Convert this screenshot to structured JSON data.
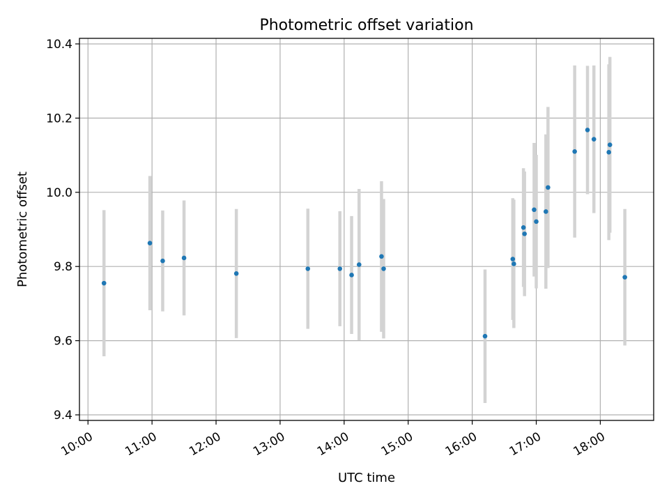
{
  "chart_data": {
    "type": "scatter",
    "title": "Photometric offset variation",
    "xlabel": "UTC time",
    "ylabel": "Photometric offset",
    "x_is_time": true,
    "xlim": [
      "09:52",
      "18:50"
    ],
    "ylim": [
      9.385,
      10.415
    ],
    "xticks": [
      "10:00",
      "11:00",
      "12:00",
      "13:00",
      "14:00",
      "15:00",
      "16:00",
      "17:00",
      "18:00"
    ],
    "yticks": [
      "9.4",
      "9.6",
      "9.8",
      "10.0",
      "10.2",
      "10.4"
    ],
    "grid": true,
    "marker_color": "#1f77b4",
    "errorbar_color": "#d3d3d3",
    "points": [
      {
        "x": "10:15",
        "y": 9.755,
        "err": 0.197
      },
      {
        "x": "10:58",
        "y": 9.863,
        "err": 0.181
      },
      {
        "x": "11:10",
        "y": 9.815,
        "err": 0.136
      },
      {
        "x": "11:30",
        "y": 9.823,
        "err": 0.155
      },
      {
        "x": "12:19",
        "y": 9.781,
        "err": 0.174
      },
      {
        "x": "13:26",
        "y": 9.794,
        "err": 0.162
      },
      {
        "x": "13:56",
        "y": 9.794,
        "err": 0.155
      },
      {
        "x": "14:07",
        "y": 9.777,
        "err": 0.159
      },
      {
        "x": "14:14",
        "y": 9.805,
        "err": 0.204
      },
      {
        "x": "14:35",
        "y": 9.827,
        "err": 0.203
      },
      {
        "x": "14:37",
        "y": 9.794,
        "err": 0.188
      },
      {
        "x": "16:12",
        "y": 9.612,
        "err": 0.18
      },
      {
        "x": "16:38",
        "y": 9.82,
        "err": 0.164
      },
      {
        "x": "16:39",
        "y": 9.807,
        "err": 0.173
      },
      {
        "x": "16:48",
        "y": 9.905,
        "err": 0.16
      },
      {
        "x": "16:49",
        "y": 9.888,
        "err": 0.168
      },
      {
        "x": "16:58",
        "y": 9.953,
        "err": 0.18
      },
      {
        "x": "17:00",
        "y": 9.921,
        "err": 0.18
      },
      {
        "x": "17:09",
        "y": 9.948,
        "err": 0.208
      },
      {
        "x": "17:11",
        "y": 10.013,
        "err": 0.217
      },
      {
        "x": "17:36",
        "y": 10.11,
        "err": 0.232
      },
      {
        "x": "17:48",
        "y": 10.168,
        "err": 0.173
      },
      {
        "x": "17:54",
        "y": 10.143,
        "err": 0.199
      },
      {
        "x": "18:08",
        "y": 10.108,
        "err": 0.237
      },
      {
        "x": "18:09",
        "y": 10.128,
        "err": 0.237
      },
      {
        "x": "18:23",
        "y": 9.771,
        "err": 0.184
      }
    ]
  }
}
